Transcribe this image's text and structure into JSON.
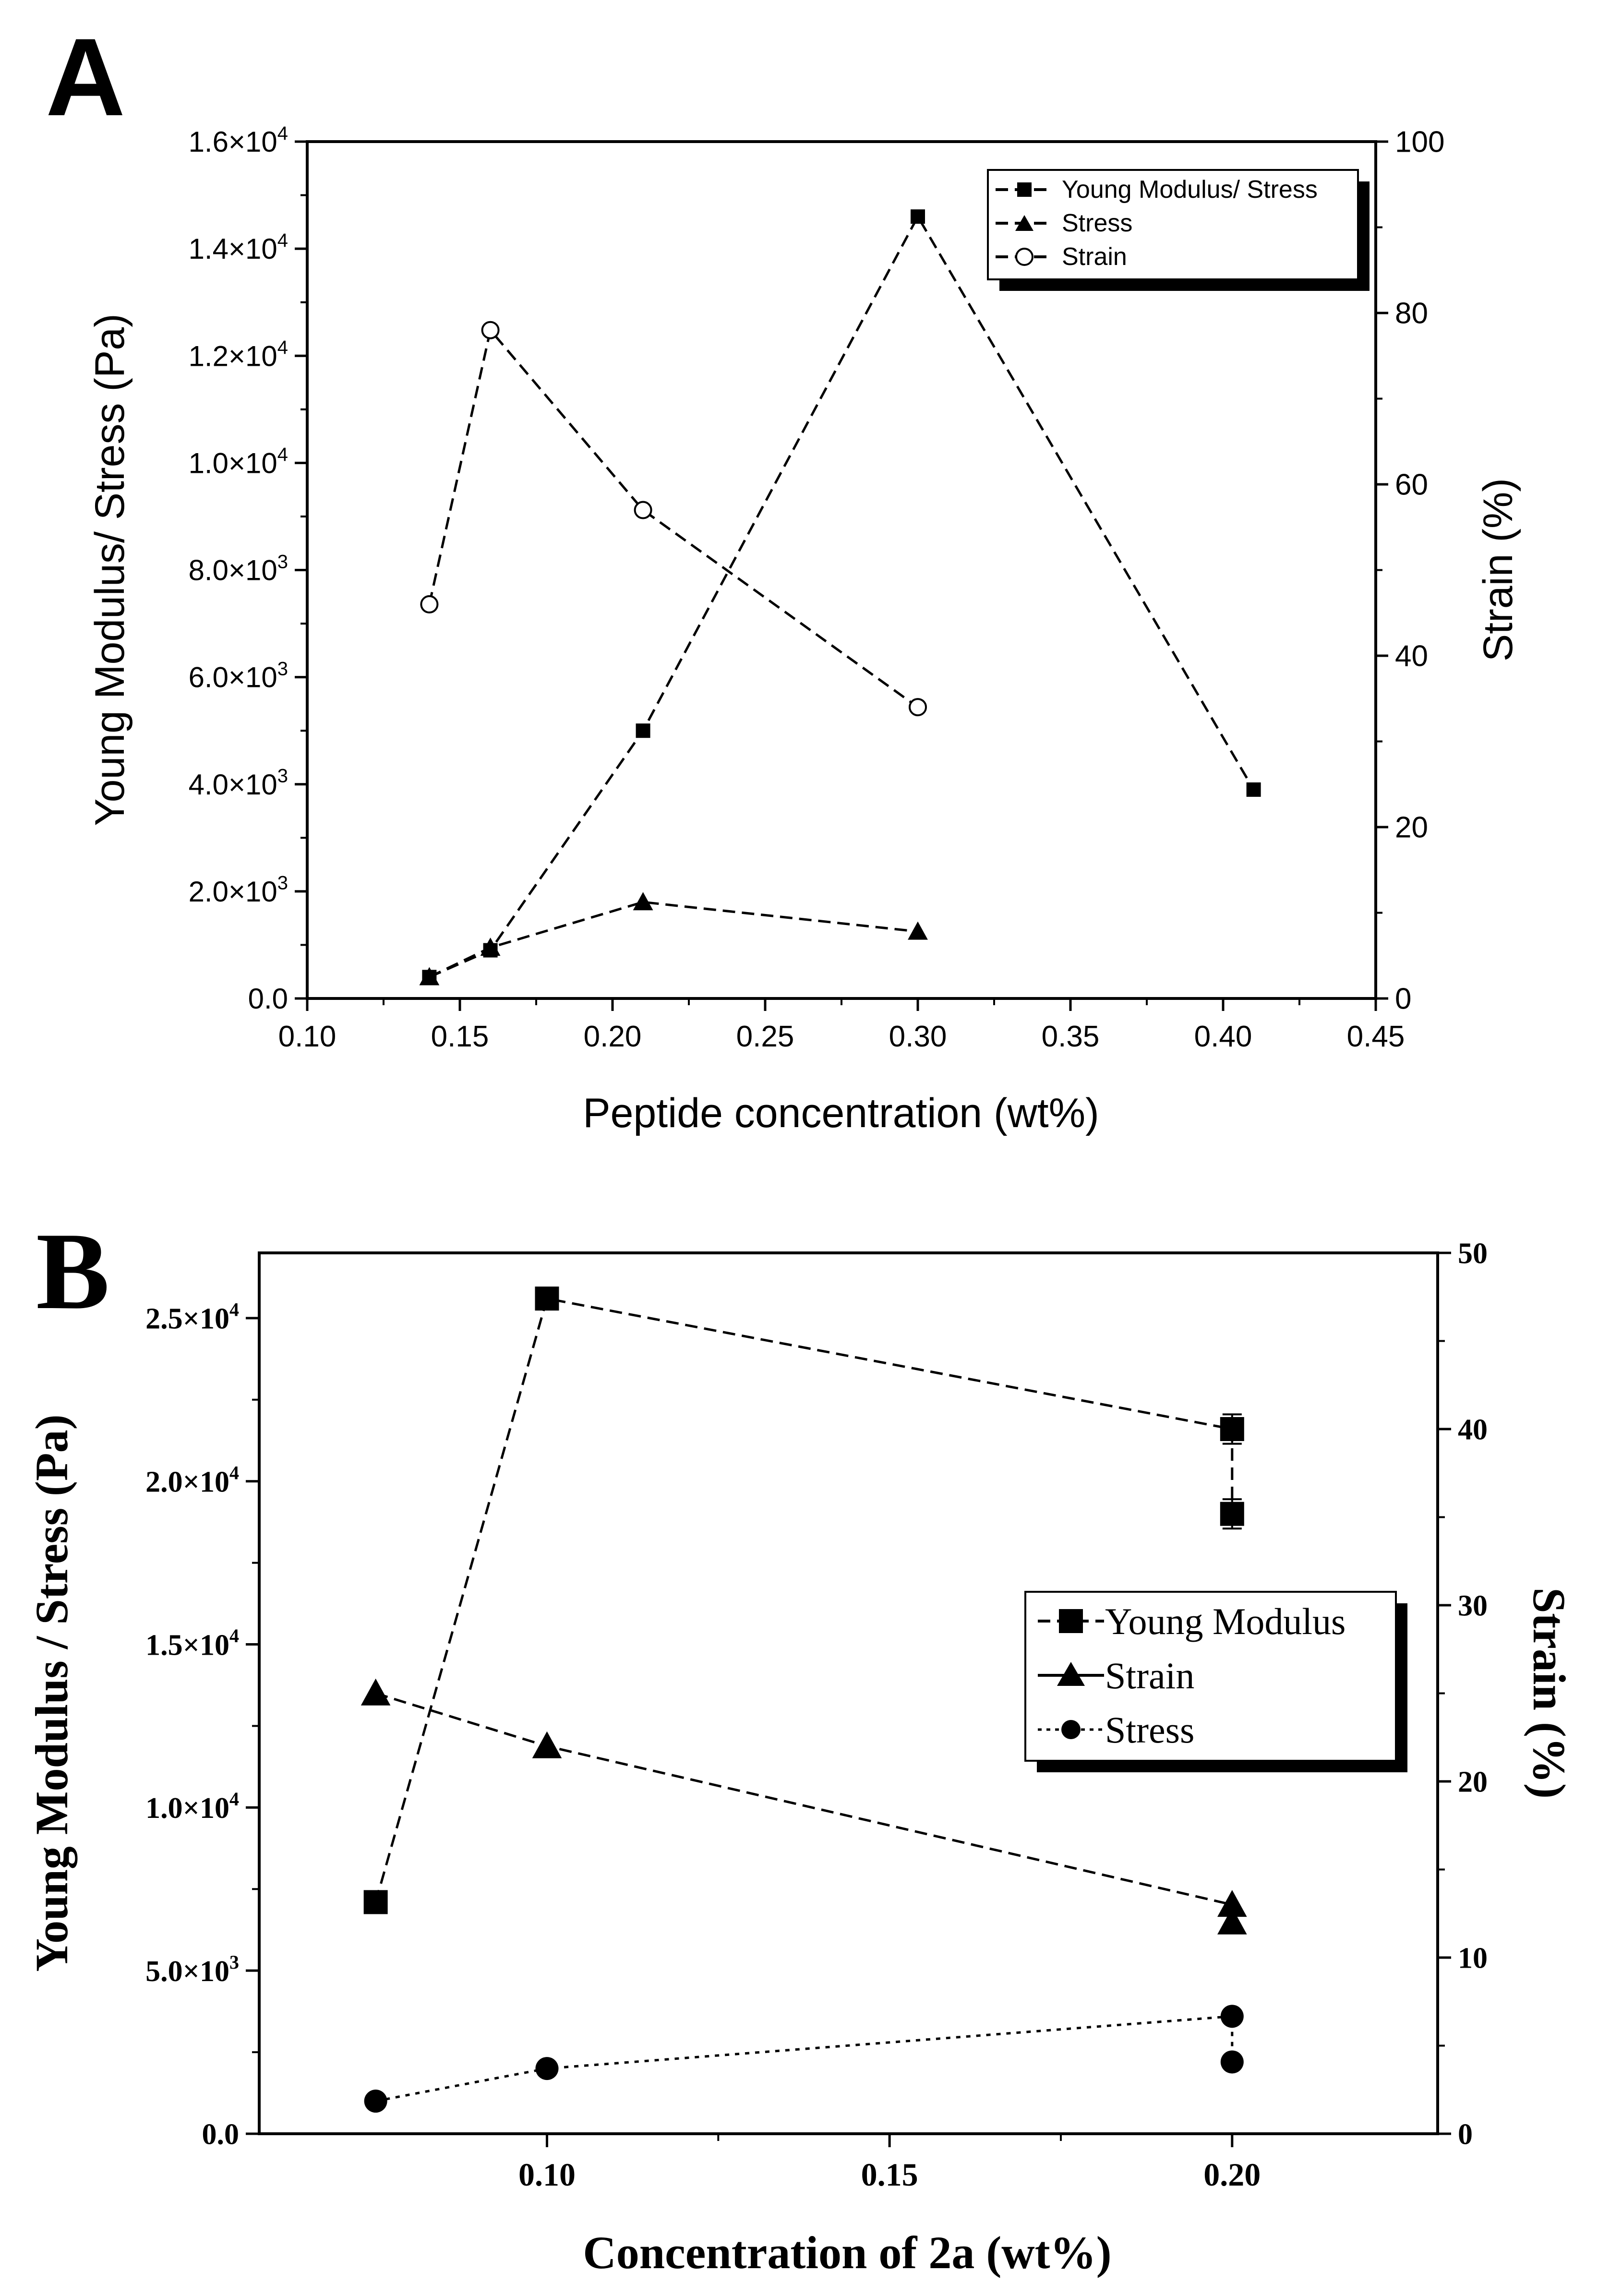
{
  "chart_data": [
    {
      "panel_label": "A",
      "type": "line",
      "xlabel": "Peptide concentration (wt%)",
      "ylabel": "Young Modulus/ Stress (Pa)",
      "y2label": "Strain (%)",
      "xlim": [
        0.1,
        0.45
      ],
      "ylim": [
        0,
        16000
      ],
      "y2lim": [
        0,
        100
      ],
      "x_ticks": [
        0.1,
        0.15,
        0.2,
        0.25,
        0.3,
        0.35,
        0.4,
        0.45
      ],
      "x_tick_labels": [
        "0.10",
        "0.15",
        "0.20",
        "0.25",
        "0.30",
        "0.35",
        "0.40",
        "0.45"
      ],
      "y_ticks": [
        {
          "value": 0,
          "mant": "0.0",
          "exp": ""
        },
        {
          "value": 2000,
          "mant": "2.0×10",
          "exp": "3"
        },
        {
          "value": 4000,
          "mant": "4.0×10",
          "exp": "3"
        },
        {
          "value": 6000,
          "mant": "6.0×10",
          "exp": "3"
        },
        {
          "value": 8000,
          "mant": "8.0×10",
          "exp": "3"
        },
        {
          "value": 10000,
          "mant": "1.0×10",
          "exp": "4"
        },
        {
          "value": 12000,
          "mant": "1.2×10",
          "exp": "4"
        },
        {
          "value": 14000,
          "mant": "1.4×10",
          "exp": "4"
        },
        {
          "value": 16000,
          "mant": "1.6×10",
          "exp": "4"
        }
      ],
      "y2_ticks": [
        {
          "value": 0,
          "label": "0"
        },
        {
          "value": 20,
          "label": "20"
        },
        {
          "value": 40,
          "label": "40"
        },
        {
          "value": 60,
          "label": "60"
        },
        {
          "value": 80,
          "label": "80"
        },
        {
          "value": 100,
          "label": "100"
        }
      ],
      "legend_position": "top-right",
      "series": [
        {
          "name": "Young Modulus/ Stress",
          "marker": "square",
          "axis": "left",
          "x": [
            0.14,
            0.16,
            0.21,
            0.3,
            0.41
          ],
          "y": [
            400,
            900,
            5000,
            14600,
            3900
          ]
        },
        {
          "name": "Stress",
          "marker": "triangle",
          "axis": "left",
          "x": [
            0.14,
            0.16,
            0.21,
            0.3
          ],
          "y": [
            400,
            950,
            1800,
            1250
          ]
        },
        {
          "name": "Strain",
          "marker": "open-circle",
          "axis": "right",
          "x": [
            0.14,
            0.16,
            0.21,
            0.3
          ],
          "y": [
            46,
            78,
            57,
            34
          ]
        }
      ]
    },
    {
      "panel_label": "B",
      "type": "line",
      "xlabel": "Concentration of 2a (wt%)",
      "ylabel": "Young Modulus / Stress (Pa)",
      "y2label": "Strain (%)",
      "xlim": [
        0.058,
        0.23
      ],
      "ylim": [
        0,
        27000
      ],
      "y2lim": [
        0,
        50
      ],
      "x_ticks": [
        0.1,
        0.15,
        0.2
      ],
      "x_tick_labels": [
        "0.10",
        "0.15",
        "0.20"
      ],
      "y_ticks": [
        {
          "value": 0,
          "mant": "0.0",
          "exp": ""
        },
        {
          "value": 5000,
          "mant": "5.0×10",
          "exp": "3"
        },
        {
          "value": 10000,
          "mant": "1.0×10",
          "exp": "4"
        },
        {
          "value": 15000,
          "mant": "1.5×10",
          "exp": "4"
        },
        {
          "value": 20000,
          "mant": "2.0×10",
          "exp": "4"
        },
        {
          "value": 25000,
          "mant": "2.5×10",
          "exp": "4"
        }
      ],
      "y2_ticks": [
        {
          "value": 0,
          "label": "0"
        },
        {
          "value": 10,
          "label": "10"
        },
        {
          "value": 20,
          "label": "20"
        },
        {
          "value": 30,
          "label": "30"
        },
        {
          "value": 40,
          "label": "40"
        },
        {
          "value": 50,
          "label": "50"
        }
      ],
      "legend_position": "center-right",
      "series": [
        {
          "name": "Young Modulus",
          "marker": "square",
          "axis": "left",
          "x": [
            0.075,
            0.1,
            0.2,
            0.2
          ],
          "y": [
            7100,
            25600,
            21600,
            19000
          ],
          "error": [
            0,
            0,
            450,
            450
          ]
        },
        {
          "name": "Strain",
          "marker": "triangle",
          "axis": "right",
          "x": [
            0.075,
            0.1,
            0.2,
            0.2
          ],
          "y": [
            25,
            22,
            13,
            12
          ]
        },
        {
          "name": "Stress",
          "marker": "circle",
          "axis": "left",
          "x": [
            0.075,
            0.1,
            0.2,
            0.2
          ],
          "y": [
            1000,
            2000,
            3600,
            2200
          ]
        }
      ]
    }
  ]
}
